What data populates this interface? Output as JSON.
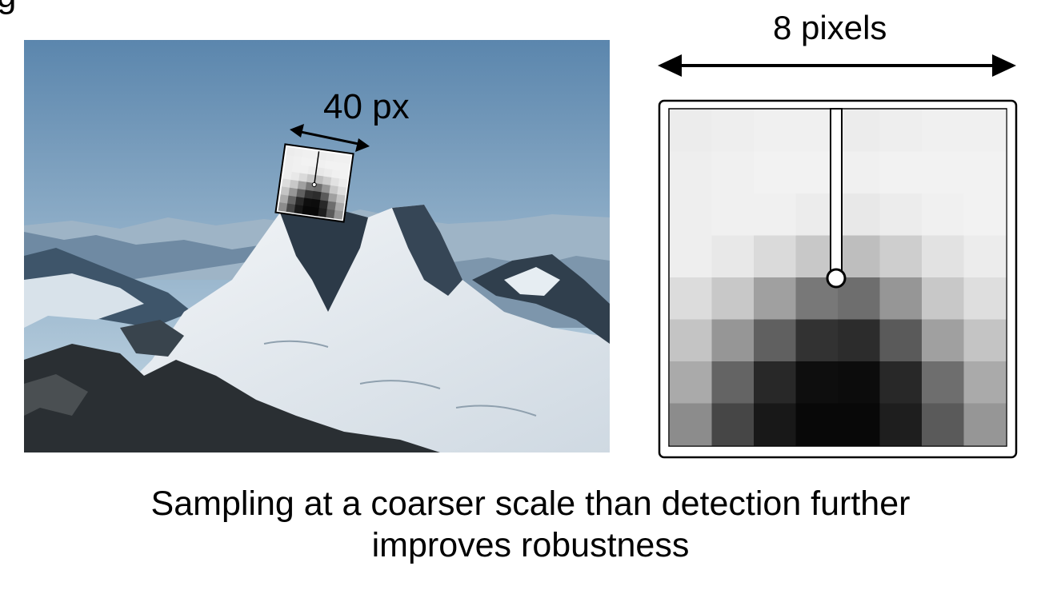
{
  "slide": {
    "title_fragment": "g"
  },
  "photo": {
    "patch_label": "40 px",
    "sky_top": "#5b86ad",
    "sky_bottom": "#c9dbe6"
  },
  "patch_grid": {
    "width_label": "8 pixels",
    "rows": 8,
    "cols": 8,
    "intensities": [
      [
        236,
        238,
        240,
        240,
        236,
        238,
        240,
        240
      ],
      [
        238,
        240,
        242,
        242,
        240,
        242,
        242,
        242
      ],
      [
        238,
        240,
        240,
        236,
        232,
        236,
        240,
        242
      ],
      [
        238,
        232,
        218,
        200,
        190,
        206,
        226,
        236
      ],
      [
        220,
        200,
        160,
        120,
        110,
        150,
        200,
        222
      ],
      [
        196,
        150,
        96,
        50,
        44,
        90,
        160,
        196
      ],
      [
        170,
        100,
        40,
        14,
        12,
        40,
        110,
        170
      ],
      [
        140,
        70,
        24,
        8,
        8,
        30,
        90,
        150
      ]
    ]
  },
  "caption": {
    "line1": "Sampling at a coarser scale than detection further",
    "line2": "improves robustness"
  }
}
